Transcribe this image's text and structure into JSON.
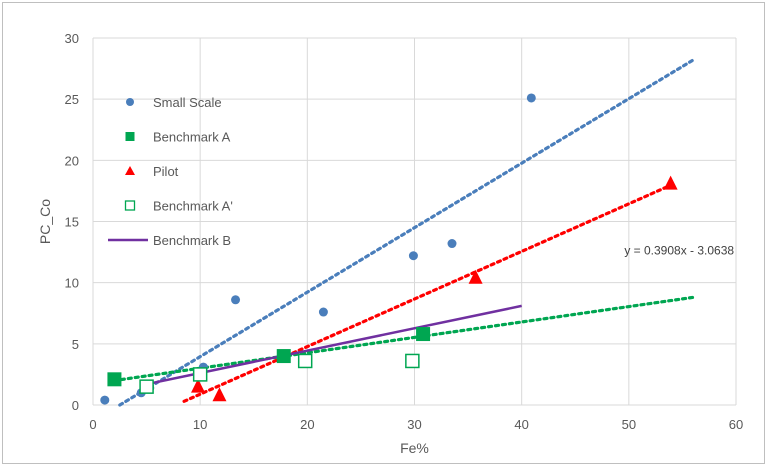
{
  "chart_data": {
    "type": "scatter",
    "title": "",
    "xlabel": "Fe%",
    "ylabel": "PC_Co",
    "xlim": [
      0,
      60
    ],
    "ylim": [
      0,
      30
    ],
    "x_ticks": [
      0,
      10,
      20,
      30,
      40,
      50,
      60
    ],
    "y_ticks": [
      0,
      5,
      10,
      15,
      20,
      25,
      30
    ],
    "grid": true,
    "legend_position": "top-left",
    "series": [
      {
        "name": "Small Scale",
        "marker": "circle",
        "color": "#4a7ebb",
        "x": [
          1.1,
          4.5,
          5.3,
          10.3,
          13.3,
          21.5,
          29.9,
          33.5,
          40.9
        ],
        "y": [
          0.4,
          1.0,
          1.4,
          3.1,
          8.6,
          7.6,
          12.2,
          13.2,
          25.1
        ]
      },
      {
        "name": "Benchmark A",
        "marker": "square-filled",
        "color": "#00a651",
        "x": [
          2.0,
          17.8,
          30.8
        ],
        "y": [
          2.1,
          4.0,
          5.8
        ]
      },
      {
        "name": "Pilot",
        "marker": "triangle",
        "color": "#ff0000",
        "x": [
          9.8,
          11.8,
          35.7,
          53.9
        ],
        "y": [
          1.5,
          0.8,
          10.4,
          18.1
        ]
      },
      {
        "name": "Benchmark A'",
        "marker": "square-open",
        "color": "#00a651",
        "x": [
          5.0,
          10.0,
          19.8,
          29.8
        ],
        "y": [
          1.5,
          2.5,
          3.6,
          3.6
        ]
      },
      {
        "name": "Benchmark B",
        "marker": "line",
        "color": "#7030a0",
        "x": [
          5.0,
          40.0
        ],
        "y": [
          1.7,
          8.1
        ]
      }
    ],
    "trendlines": [
      {
        "series": "Small Scale",
        "color": "#4a7ebb",
        "x": [
          2.5,
          56
        ],
        "y": [
          0.0,
          28.2
        ]
      },
      {
        "series": "Pilot",
        "color": "#ff0000",
        "x": [
          8.5,
          54
        ],
        "y": [
          0.3,
          18.0
        ]
      },
      {
        "series": "Benchmark A",
        "color": "#00a651",
        "x": [
          2.0,
          56
        ],
        "y": [
          2.0,
          8.8
        ]
      }
    ],
    "annotations": [
      {
        "text": "y = 0.3908x  - 3.0638",
        "x": 54.7,
        "y": 12.3
      }
    ]
  }
}
